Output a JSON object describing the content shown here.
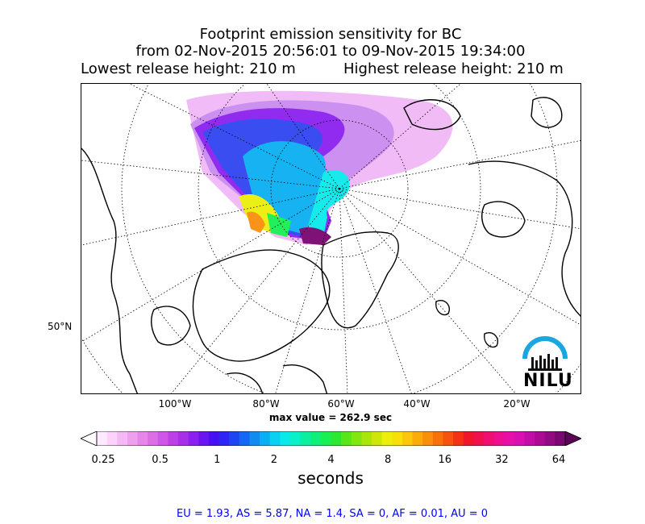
{
  "title": {
    "line1": "Footprint emission sensitivity for BC",
    "line2": "from 02-Nov-2015 20:56:01 to 09-Nov-2015 19:34:00",
    "lowest_release": "Lowest release height: 210 m",
    "highest_release": "Highest release height: 210 m"
  },
  "map": {
    "projection": "north-polar-stereographic",
    "lat_labels": [
      "50°N"
    ],
    "lon_labels": [
      "100°W",
      "80°W",
      "60°W",
      "40°W",
      "20°W"
    ],
    "max_value_label": "max value = 262.9 sec",
    "logo_text": "NILU"
  },
  "colorbar": {
    "scale": "log",
    "ticks": [
      "0.25",
      "0.5",
      "1",
      "2",
      "4",
      "8",
      "16",
      "32",
      "64"
    ],
    "units": "seconds",
    "colors": [
      "#ffe9ff",
      "#fbd2fb",
      "#f5b9f5",
      "#eea0ee",
      "#e586e8",
      "#dc6fe6",
      "#cf56e6",
      "#bd3fe6",
      "#a82fe9",
      "#8c20ef",
      "#6a14f2",
      "#4610f2",
      "#2f24f1",
      "#1f44f2",
      "#1467f2",
      "#0f8bf2",
      "#0aaef2",
      "#0ad0f2",
      "#0ae9e9",
      "#0af0c8",
      "#0bf0a0",
      "#0ef07a",
      "#18ef52",
      "#2de833",
      "#58e61a",
      "#82e60f",
      "#aae60c",
      "#cfe60b",
      "#ecef0a",
      "#f7e00a",
      "#fcc70a",
      "#fbac0b",
      "#fa8f0c",
      "#f8710d",
      "#f5530f",
      "#f23213",
      "#f0142d",
      "#f0104e",
      "#f00f70",
      "#ee0f90",
      "#e60fa8",
      "#d80fb2",
      "#c40ca6",
      "#ac0a95",
      "#930883",
      "#7a0670"
    ]
  },
  "regions_text": "EU = 1.93,  AS = 5.87,  NA = 1.4,  SA = 0,  AF = 0.01,  AU = 0"
}
